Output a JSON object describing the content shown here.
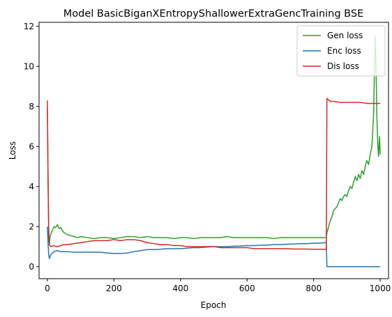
{
  "chart_data": {
    "type": "line",
    "title": "Model BasicBiganXEntropyShallowerExtraGencTraining BSE",
    "xlabel": "Epoch",
    "ylabel": "Loss",
    "xlim": [
      -25,
      1025
    ],
    "ylim": [
      -0.6,
      12.2
    ],
    "xticks": [
      0,
      200,
      400,
      600,
      800,
      1000
    ],
    "yticks": [
      0,
      2,
      4,
      6,
      8,
      10,
      12
    ],
    "grid": false,
    "legend_position": "top-right",
    "series": [
      {
        "name": "Gen loss",
        "color": "#2ca02c",
        "points": [
          [
            0,
            7.9
          ],
          [
            2,
            4.6
          ],
          [
            4,
            1.4
          ],
          [
            6,
            1.1
          ],
          [
            8,
            1.5
          ],
          [
            12,
            1.7
          ],
          [
            16,
            1.85
          ],
          [
            20,
            2.0
          ],
          [
            25,
            1.95
          ],
          [
            30,
            2.1
          ],
          [
            35,
            1.9
          ],
          [
            40,
            1.95
          ],
          [
            45,
            1.8
          ],
          [
            50,
            1.7
          ],
          [
            60,
            1.6
          ],
          [
            70,
            1.55
          ],
          [
            80,
            1.5
          ],
          [
            90,
            1.45
          ],
          [
            100,
            1.5
          ],
          [
            120,
            1.45
          ],
          [
            140,
            1.4
          ],
          [
            160,
            1.45
          ],
          [
            180,
            1.45
          ],
          [
            200,
            1.4
          ],
          [
            220,
            1.45
          ],
          [
            240,
            1.5
          ],
          [
            260,
            1.5
          ],
          [
            280,
            1.45
          ],
          [
            300,
            1.5
          ],
          [
            320,
            1.45
          ],
          [
            340,
            1.45
          ],
          [
            360,
            1.45
          ],
          [
            380,
            1.4
          ],
          [
            400,
            1.45
          ],
          [
            420,
            1.45
          ],
          [
            440,
            1.4
          ],
          [
            460,
            1.45
          ],
          [
            480,
            1.45
          ],
          [
            500,
            1.45
          ],
          [
            520,
            1.45
          ],
          [
            540,
            1.5
          ],
          [
            560,
            1.45
          ],
          [
            580,
            1.45
          ],
          [
            600,
            1.45
          ],
          [
            620,
            1.45
          ],
          [
            640,
            1.45
          ],
          [
            660,
            1.45
          ],
          [
            680,
            1.4
          ],
          [
            700,
            1.45
          ],
          [
            720,
            1.45
          ],
          [
            740,
            1.45
          ],
          [
            760,
            1.45
          ],
          [
            780,
            1.45
          ],
          [
            800,
            1.45
          ],
          [
            820,
            1.45
          ],
          [
            838,
            1.45
          ],
          [
            840,
            1.7
          ],
          [
            845,
            2.0
          ],
          [
            850,
            2.3
          ],
          [
            855,
            2.5
          ],
          [
            860,
            2.8
          ],
          [
            865,
            2.9
          ],
          [
            870,
            3.0
          ],
          [
            875,
            3.2
          ],
          [
            880,
            3.4
          ],
          [
            885,
            3.3
          ],
          [
            890,
            3.5
          ],
          [
            895,
            3.6
          ],
          [
            900,
            3.5
          ],
          [
            905,
            3.8
          ],
          [
            910,
            4.0
          ],
          [
            915,
            3.9
          ],
          [
            920,
            4.2
          ],
          [
            925,
            4.5
          ],
          [
            930,
            4.3
          ],
          [
            935,
            4.6
          ],
          [
            940,
            4.4
          ],
          [
            945,
            4.8
          ],
          [
            950,
            4.6
          ],
          [
            955,
            5.0
          ],
          [
            960,
            5.3
          ],
          [
            965,
            5.1
          ],
          [
            970,
            5.6
          ],
          [
            975,
            6.0
          ],
          [
            980,
            7.5
          ],
          [
            983,
            10.0
          ],
          [
            985,
            11.5
          ],
          [
            988,
            9.5
          ],
          [
            990,
            7.5
          ],
          [
            993,
            6.0
          ],
          [
            995,
            5.5
          ],
          [
            998,
            6.5
          ],
          [
            1000,
            5.6
          ]
        ]
      },
      {
        "name": "Enc loss",
        "color": "#1f77b4",
        "points": [
          [
            0,
            2.0
          ],
          [
            2,
            1.2
          ],
          [
            4,
            0.6
          ],
          [
            6,
            0.4
          ],
          [
            10,
            0.6
          ],
          [
            20,
            0.75
          ],
          [
            30,
            0.8
          ],
          [
            40,
            0.75
          ],
          [
            50,
            0.75
          ],
          [
            60,
            0.75
          ],
          [
            80,
            0.72
          ],
          [
            100,
            0.72
          ],
          [
            120,
            0.72
          ],
          [
            140,
            0.72
          ],
          [
            160,
            0.72
          ],
          [
            180,
            0.68
          ],
          [
            200,
            0.66
          ],
          [
            220,
            0.66
          ],
          [
            240,
            0.68
          ],
          [
            260,
            0.75
          ],
          [
            280,
            0.8
          ],
          [
            300,
            0.85
          ],
          [
            320,
            0.85
          ],
          [
            340,
            0.87
          ],
          [
            360,
            0.9
          ],
          [
            380,
            0.9
          ],
          [
            400,
            0.9
          ],
          [
            420,
            0.92
          ],
          [
            440,
            0.95
          ],
          [
            460,
            0.95
          ],
          [
            480,
            0.98
          ],
          [
            500,
            1.0
          ],
          [
            520,
            1.0
          ],
          [
            540,
            1.0
          ],
          [
            560,
            1.02
          ],
          [
            580,
            1.03
          ],
          [
            600,
            1.05
          ],
          [
            620,
            1.05
          ],
          [
            640,
            1.07
          ],
          [
            660,
            1.08
          ],
          [
            680,
            1.1
          ],
          [
            700,
            1.1
          ],
          [
            720,
            1.12
          ],
          [
            740,
            1.13
          ],
          [
            760,
            1.15
          ],
          [
            780,
            1.15
          ],
          [
            800,
            1.17
          ],
          [
            820,
            1.18
          ],
          [
            838,
            1.2
          ],
          [
            840,
            0.0
          ],
          [
            860,
            0.0
          ],
          [
            900,
            0.0
          ],
          [
            950,
            0.0
          ],
          [
            1000,
            0.0
          ]
        ]
      },
      {
        "name": "Dis loss",
        "color": "#d62728",
        "points": [
          [
            0,
            8.3
          ],
          [
            2,
            4.3
          ],
          [
            4,
            1.9
          ],
          [
            6,
            1.1
          ],
          [
            10,
            1.0
          ],
          [
            20,
            1.05
          ],
          [
            30,
            1.0
          ],
          [
            40,
            1.05
          ],
          [
            50,
            1.1
          ],
          [
            60,
            1.1
          ],
          [
            80,
            1.15
          ],
          [
            100,
            1.2
          ],
          [
            120,
            1.25
          ],
          [
            140,
            1.3
          ],
          [
            160,
            1.3
          ],
          [
            180,
            1.3
          ],
          [
            200,
            1.35
          ],
          [
            220,
            1.3
          ],
          [
            240,
            1.35
          ],
          [
            260,
            1.35
          ],
          [
            280,
            1.3
          ],
          [
            300,
            1.2
          ],
          [
            320,
            1.15
          ],
          [
            340,
            1.1
          ],
          [
            360,
            1.1
          ],
          [
            380,
            1.05
          ],
          [
            400,
            1.05
          ],
          [
            420,
            1.0
          ],
          [
            440,
            1.0
          ],
          [
            460,
            1.0
          ],
          [
            480,
            1.0
          ],
          [
            500,
            1.0
          ],
          [
            520,
            0.95
          ],
          [
            540,
            0.95
          ],
          [
            560,
            0.95
          ],
          [
            580,
            0.95
          ],
          [
            600,
            0.95
          ],
          [
            620,
            0.9
          ],
          [
            640,
            0.9
          ],
          [
            660,
            0.9
          ],
          [
            680,
            0.9
          ],
          [
            700,
            0.9
          ],
          [
            720,
            0.9
          ],
          [
            740,
            0.88
          ],
          [
            760,
            0.88
          ],
          [
            780,
            0.88
          ],
          [
            800,
            0.87
          ],
          [
            820,
            0.87
          ],
          [
            838,
            0.87
          ],
          [
            840,
            8.4
          ],
          [
            850,
            8.25
          ],
          [
            860,
            8.25
          ],
          [
            880,
            8.2
          ],
          [
            900,
            8.2
          ],
          [
            920,
            8.2
          ],
          [
            940,
            8.2
          ],
          [
            960,
            8.15
          ],
          [
            980,
            8.15
          ],
          [
            1000,
            8.15
          ]
        ]
      }
    ]
  }
}
